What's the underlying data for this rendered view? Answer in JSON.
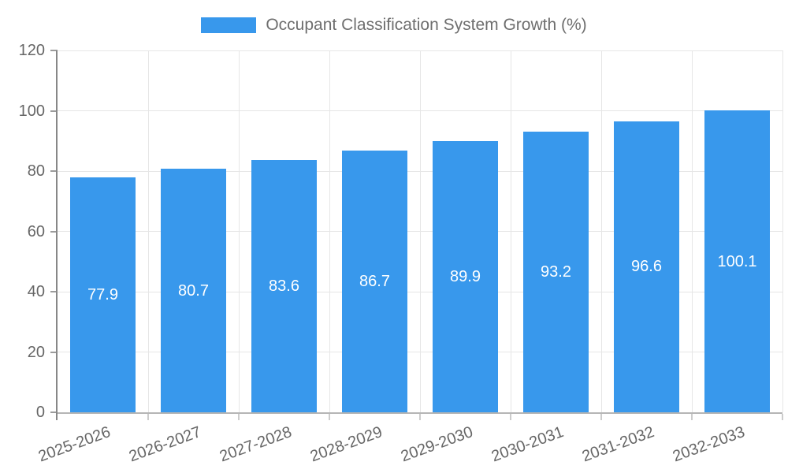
{
  "chart_data": {
    "type": "bar",
    "title": "Occupant Classification System Growth (%)",
    "categories": [
      "2025-2026",
      "2026-2027",
      "2027-2028",
      "2028-2029",
      "2029-2030",
      "2030-2031",
      "2031-2032",
      "2032-2033"
    ],
    "values": [
      77.9,
      80.7,
      83.6,
      86.7,
      89.9,
      93.2,
      96.6,
      100.1
    ],
    "xlabel": "",
    "ylabel": "",
    "ylim": [
      0,
      120
    ],
    "yticks": [
      0,
      20,
      40,
      60,
      80,
      100,
      120
    ],
    "grid": true,
    "legend_position": "top-center",
    "value_labels": "inside-center",
    "x_label_rotation_deg": -20,
    "colors": {
      "bar": "#3898ec",
      "value_label": "#ffffff",
      "grid": "#e6e6e6",
      "y_axis": "#878787",
      "x_axis": "#b5b5b5",
      "y_tick": "#9b9b9b",
      "x_tick": "#cccccc",
      "tick_label": "#666666",
      "title": "#6e6e6e",
      "background": "#ffffff"
    }
  }
}
